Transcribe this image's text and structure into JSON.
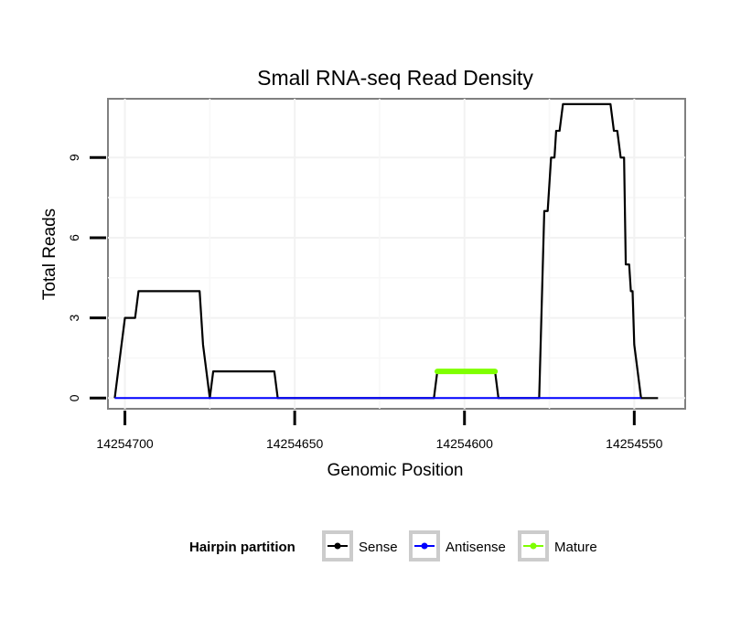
{
  "chart_data": {
    "type": "line",
    "title": "Small RNA-seq Read Density",
    "xlabel": "Genomic Position",
    "ylabel": "Total Reads",
    "x_reversed": true,
    "xlim": [
      14254705,
      14254535
    ],
    "ylim": [
      -0.4,
      11.2
    ],
    "x_ticks": [
      14254700,
      14254650,
      14254600,
      14254550
    ],
    "x_tick_labels": [
      "14254700",
      "14254650",
      "14254600",
      "14254550"
    ],
    "y_ticks": [
      0,
      3,
      6,
      9
    ],
    "y_tick_labels": [
      "0",
      "3",
      "6",
      "9"
    ],
    "grid": true,
    "legend": {
      "title": "Hairpin partition",
      "placement": "bottom",
      "entries": [
        {
          "name": "Sense",
          "color": "#000000"
        },
        {
          "name": "Antisense",
          "color": "#0000ff"
        },
        {
          "name": "Mature",
          "color": "#7fff00"
        }
      ]
    },
    "series": [
      {
        "name": "Sense",
        "color": "#000000",
        "points": [
          [
            14254703,
            0
          ],
          [
            14254700,
            3
          ],
          [
            14254697,
            3
          ],
          [
            14254696,
            4
          ],
          [
            14254678,
            4
          ],
          [
            14254677,
            2
          ],
          [
            14254675,
            0
          ],
          [
            14254674,
            1
          ],
          [
            14254656,
            1
          ],
          [
            14254655,
            0
          ],
          [
            14254609,
            0
          ],
          [
            14254608,
            1
          ],
          [
            14254591,
            1
          ],
          [
            14254590,
            0
          ],
          [
            14254578,
            0
          ],
          [
            14254576.5,
            7
          ],
          [
            14254575.5,
            7
          ],
          [
            14254574.5,
            9
          ],
          [
            14254573.5,
            9
          ],
          [
            14254573,
            10
          ],
          [
            14254572,
            10
          ],
          [
            14254571,
            11
          ],
          [
            14254557,
            11
          ],
          [
            14254556,
            10
          ],
          [
            14254555,
            10
          ],
          [
            14254554,
            9
          ],
          [
            14254553,
            9
          ],
          [
            14254552.5,
            5
          ],
          [
            14254551.5,
            5
          ],
          [
            14254551,
            4
          ],
          [
            14254550.5,
            4
          ],
          [
            14254550,
            2
          ],
          [
            14254548,
            0
          ],
          [
            14254543,
            0
          ]
        ]
      },
      {
        "name": "Antisense",
        "color": "#0000ff",
        "points": [
          [
            14254703,
            0
          ],
          [
            14254548,
            0
          ]
        ]
      },
      {
        "name": "Mature",
        "color": "#7fff00",
        "points": [
          [
            14254608,
            1
          ],
          [
            14254591,
            1
          ]
        ]
      }
    ]
  }
}
